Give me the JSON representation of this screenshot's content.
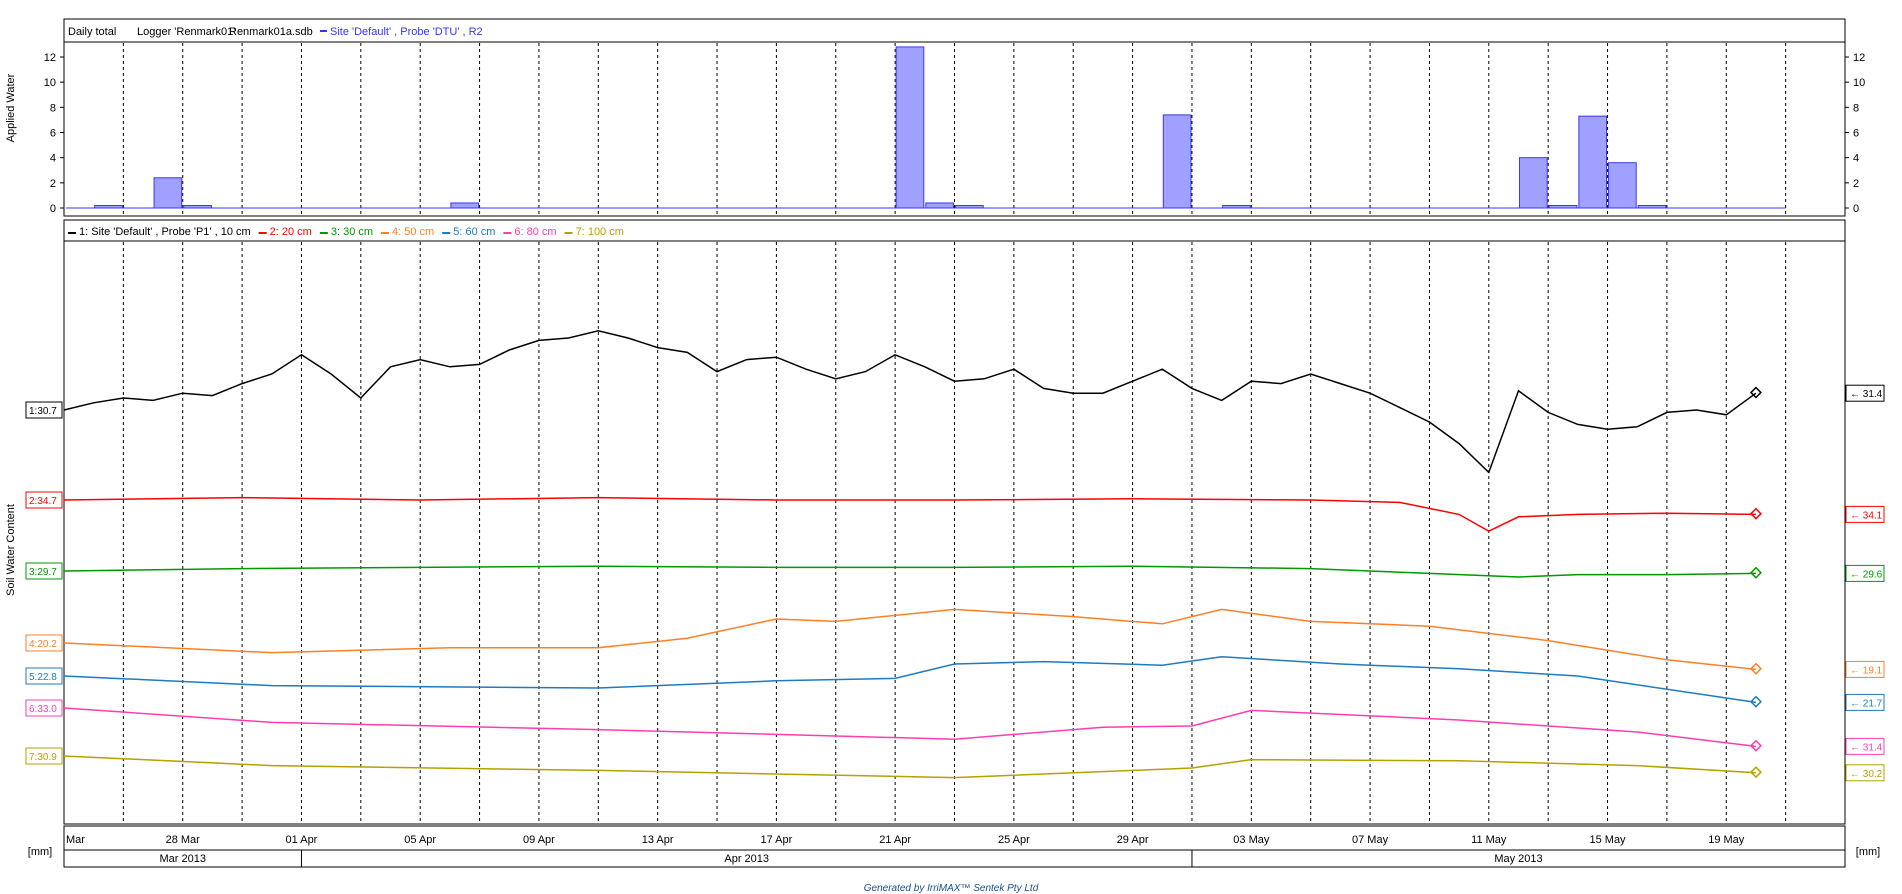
{
  "window_title": "",
  "footer": "Generated by IrriMAX™ Sentek Pty Ltd",
  "units_label": "[mm]",
  "colors": {
    "bar_fill": "#a0a0ff",
    "bar_stroke": "#3a3aee",
    "grid": "#000000",
    "footer": "#1a4f8a"
  },
  "chart_data": [
    {
      "type": "bar",
      "title": "Daily total",
      "header_items": [
        "Daily total",
        "Logger 'Renmark01'",
        "Renmark01a.sdb"
      ],
      "legend": [
        {
          "name": "Site 'Default' , Probe 'DTU' , R2",
          "color": "#3535ff"
        }
      ],
      "ylabel": "Applied Water",
      "ylim": [
        0,
        13.5
      ],
      "yticks": [
        0,
        2,
        4,
        6,
        8,
        10,
        12
      ],
      "x_start": "2013-03-24",
      "x_end": "2013-05-23",
      "days": [
        "2013-03-25",
        "2013-03-27",
        "2013-03-28",
        "2013-04-06",
        "2013-04-21",
        "2013-04-22",
        "2013-04-23",
        "2013-04-30",
        "2013-05-02",
        "2013-05-12",
        "2013-05-13",
        "2013-05-14",
        "2013-05-15",
        "2013-05-16"
      ],
      "values": [
        0.2,
        2.4,
        0.2,
        0.4,
        12.8,
        0.4,
        0.2,
        7.4,
        0.2,
        4.0,
        0.2,
        7.3,
        3.6,
        0.2
      ]
    },
    {
      "type": "line",
      "ylabel": "Soil Water Content",
      "x_start": "2013-03-24",
      "x_end": "2013-05-23",
      "series": [
        {
          "name": "1: Site 'Default' , Probe 'P1' , 10 cm",
          "short": "1",
          "color": "#000000",
          "start_label": "30.7",
          "end_label": "31.4",
          "points": [
            [
              "2013-03-24",
              30.7
            ],
            [
              "2013-03-25",
              31.0
            ],
            [
              "2013-03-26",
              31.2
            ],
            [
              "2013-03-27",
              31.1
            ],
            [
              "2013-03-28",
              31.4
            ],
            [
              "2013-03-29",
              31.3
            ],
            [
              "2013-03-30",
              31.8
            ],
            [
              "2013-03-31",
              32.2
            ],
            [
              "2013-04-01",
              33.0
            ],
            [
              "2013-04-02",
              32.2
            ],
            [
              "2013-04-03",
              31.2
            ],
            [
              "2013-04-04",
              32.5
            ],
            [
              "2013-04-05",
              32.8
            ],
            [
              "2013-04-06",
              32.5
            ],
            [
              "2013-04-07",
              32.6
            ],
            [
              "2013-04-08",
              33.2
            ],
            [
              "2013-04-09",
              33.6
            ],
            [
              "2013-04-10",
              33.7
            ],
            [
              "2013-04-11",
              34.0
            ],
            [
              "2013-04-12",
              33.7
            ],
            [
              "2013-04-13",
              33.3
            ],
            [
              "2013-04-14",
              33.1
            ],
            [
              "2013-04-15",
              32.3
            ],
            [
              "2013-04-16",
              32.8
            ],
            [
              "2013-04-17",
              32.9
            ],
            [
              "2013-04-18",
              32.4
            ],
            [
              "2013-04-19",
              32.0
            ],
            [
              "2013-04-20",
              32.3
            ],
            [
              "2013-04-21",
              33.0
            ],
            [
              "2013-04-22",
              32.5
            ],
            [
              "2013-04-23",
              31.9
            ],
            [
              "2013-04-24",
              32.0
            ],
            [
              "2013-04-25",
              32.4
            ],
            [
              "2013-04-26",
              31.6
            ],
            [
              "2013-04-27",
              31.4
            ],
            [
              "2013-04-28",
              31.4
            ],
            [
              "2013-04-29",
              31.9
            ],
            [
              "2013-04-30",
              32.4
            ],
            [
              "2013-05-01",
              31.6
            ],
            [
              "2013-05-02",
              31.1
            ],
            [
              "2013-05-03",
              31.9
            ],
            [
              "2013-05-04",
              31.8
            ],
            [
              "2013-05-05",
              32.2
            ],
            [
              "2013-05-06",
              31.8
            ],
            [
              "2013-05-07",
              31.4
            ],
            [
              "2013-05-08",
              30.8
            ],
            [
              "2013-05-09",
              30.2
            ],
            [
              "2013-05-10",
              29.3
            ],
            [
              "2013-05-11",
              28.1
            ],
            [
              "2013-05-12",
              31.5
            ],
            [
              "2013-05-13",
              30.6
            ],
            [
              "2013-05-14",
              30.1
            ],
            [
              "2013-05-15",
              29.9
            ],
            [
              "2013-05-16",
              30.0
            ],
            [
              "2013-05-17",
              30.6
            ],
            [
              "2013-05-18",
              30.7
            ],
            [
              "2013-05-19",
              30.5
            ],
            [
              "2013-05-20",
              31.4
            ]
          ]
        },
        {
          "name": "2: 20 cm",
          "short": "2",
          "color": "#ff0000",
          "start_label": "34.7",
          "end_label": "34.1",
          "points": [
            [
              "2013-03-24",
              34.7
            ],
            [
              "2013-03-30",
              34.8
            ],
            [
              "2013-04-05",
              34.7
            ],
            [
              "2013-04-11",
              34.8
            ],
            [
              "2013-04-17",
              34.7
            ],
            [
              "2013-04-23",
              34.7
            ],
            [
              "2013-04-29",
              34.75
            ],
            [
              "2013-05-05",
              34.7
            ],
            [
              "2013-05-08",
              34.6
            ],
            [
              "2013-05-10",
              34.1
            ],
            [
              "2013-05-11",
              33.4
            ],
            [
              "2013-05-12",
              34.0
            ],
            [
              "2013-05-14",
              34.1
            ],
            [
              "2013-05-17",
              34.15
            ],
            [
              "2013-05-20",
              34.1
            ]
          ]
        },
        {
          "name": "3: 30 cm",
          "short": "3",
          "color": "#009900",
          "start_label": "29.7",
          "end_label": "29.6",
          "points": [
            [
              "2013-03-24",
              29.7
            ],
            [
              "2013-03-30",
              29.8
            ],
            [
              "2013-04-05",
              29.85
            ],
            [
              "2013-04-11",
              29.9
            ],
            [
              "2013-04-17",
              29.85
            ],
            [
              "2013-04-23",
              29.85
            ],
            [
              "2013-04-29",
              29.9
            ],
            [
              "2013-05-05",
              29.8
            ],
            [
              "2013-05-09",
              29.6
            ],
            [
              "2013-05-12",
              29.45
            ],
            [
              "2013-05-14",
              29.55
            ],
            [
              "2013-05-17",
              29.55
            ],
            [
              "2013-05-20",
              29.6
            ]
          ]
        },
        {
          "name": "4: 50 cm",
          "short": "4",
          "color": "#ff7f27",
          "start_label": "20.2",
          "end_label": "19.1",
          "points": [
            [
              "2013-03-24",
              20.2
            ],
            [
              "2013-03-31",
              19.8
            ],
            [
              "2013-04-06",
              20.0
            ],
            [
              "2013-04-11",
              20.0
            ],
            [
              "2013-04-14",
              20.4
            ],
            [
              "2013-04-17",
              21.2
            ],
            [
              "2013-04-19",
              21.1
            ],
            [
              "2013-04-23",
              21.6
            ],
            [
              "2013-04-27",
              21.3
            ],
            [
              "2013-04-30",
              21.0
            ],
            [
              "2013-05-02",
              21.6
            ],
            [
              "2013-05-05",
              21.1
            ],
            [
              "2013-05-09",
              20.9
            ],
            [
              "2013-05-13",
              20.3
            ],
            [
              "2013-05-17",
              19.5
            ],
            [
              "2013-05-20",
              19.1
            ]
          ]
        },
        {
          "name": "5: 60 cm",
          "short": "5",
          "color": "#1f7ac0",
          "start_label": "22.8",
          "end_label": "21.7",
          "points": [
            [
              "2013-03-24",
              22.8
            ],
            [
              "2013-03-31",
              22.4
            ],
            [
              "2013-04-11",
              22.3
            ],
            [
              "2013-04-17",
              22.6
            ],
            [
              "2013-04-21",
              22.7
            ],
            [
              "2013-04-23",
              23.3
            ],
            [
              "2013-04-26",
              23.4
            ],
            [
              "2013-04-30",
              23.25
            ],
            [
              "2013-05-02",
              23.6
            ],
            [
              "2013-05-06",
              23.3
            ],
            [
              "2013-05-10",
              23.1
            ],
            [
              "2013-05-14",
              22.8
            ],
            [
              "2013-05-20",
              21.7
            ]
          ]
        },
        {
          "name": "6: 80 cm",
          "short": "6",
          "color": "#ff3cb0",
          "start_label": "33.0",
          "end_label": "31.4",
          "points": [
            [
              "2013-03-24",
              33.0
            ],
            [
              "2013-03-31",
              32.4
            ],
            [
              "2013-04-11",
              32.1
            ],
            [
              "2013-04-23",
              31.7
            ],
            [
              "2013-04-28",
              32.2
            ],
            [
              "2013-05-01",
              32.25
            ],
            [
              "2013-05-03",
              32.9
            ],
            [
              "2013-05-10",
              32.5
            ],
            [
              "2013-05-16",
              32.0
            ],
            [
              "2013-05-20",
              31.4
            ]
          ]
        },
        {
          "name": "7: 100 cm",
          "short": "7",
          "color": "#b5a200",
          "start_label": "30.9",
          "end_label": "30.2",
          "points": [
            [
              "2013-03-24",
              30.9
            ],
            [
              "2013-03-31",
              30.5
            ],
            [
              "2013-04-11",
              30.3
            ],
            [
              "2013-04-23",
              30.0
            ],
            [
              "2013-04-29",
              30.3
            ],
            [
              "2013-05-01",
              30.4
            ],
            [
              "2013-05-03",
              30.75
            ],
            [
              "2013-05-10",
              30.7
            ],
            [
              "2013-05-16",
              30.5
            ],
            [
              "2013-05-20",
              30.2
            ]
          ]
        }
      ]
    }
  ],
  "x_axis": {
    "tick_labels": [
      {
        "date": "2013-03-24",
        "label": "Mar"
      },
      {
        "date": "2013-03-28",
        "label": "28 Mar"
      },
      {
        "date": "2013-04-01",
        "label": "01 Apr"
      },
      {
        "date": "2013-04-05",
        "label": "05 Apr"
      },
      {
        "date": "2013-04-09",
        "label": "09 Apr"
      },
      {
        "date": "2013-04-13",
        "label": "13 Apr"
      },
      {
        "date": "2013-04-17",
        "label": "17 Apr"
      },
      {
        "date": "2013-04-21",
        "label": "21 Apr"
      },
      {
        "date": "2013-04-25",
        "label": "25 Apr"
      },
      {
        "date": "2013-04-29",
        "label": "29 Apr"
      },
      {
        "date": "2013-05-03",
        "label": "03 May"
      },
      {
        "date": "2013-05-07",
        "label": "07 May"
      },
      {
        "date": "2013-05-11",
        "label": "11 May"
      },
      {
        "date": "2013-05-15",
        "label": "15 May"
      },
      {
        "date": "2013-05-19",
        "label": "19 May"
      }
    ],
    "months": [
      {
        "label": "Mar 2013",
        "start": "2013-03-24",
        "end": "2013-04-01"
      },
      {
        "label": "Apr 2013",
        "start": "2013-04-01",
        "end": "2013-05-01"
      },
      {
        "label": "May 2013",
        "start": "2013-05-01",
        "end": "2013-05-23"
      }
    ]
  }
}
